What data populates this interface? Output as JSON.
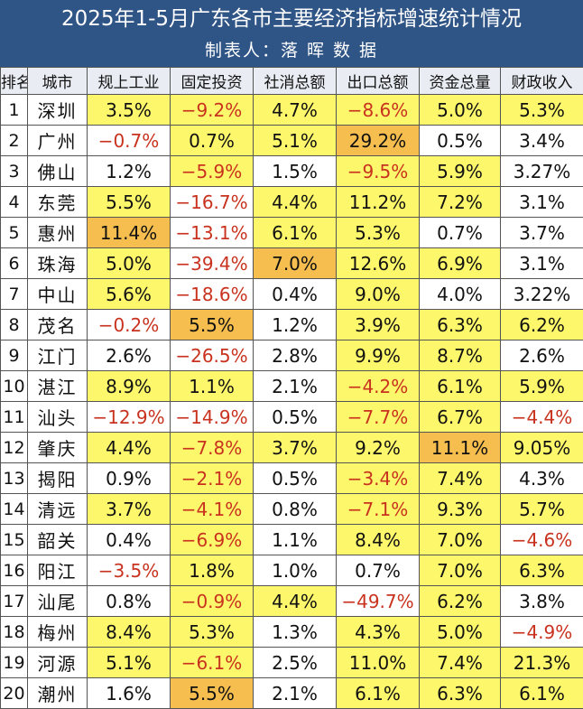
{
  "title": "2025年1-5月广东各市主要经济指标增速统计情况",
  "subtitle": "制表人：落 晖 数 据",
  "colors": {
    "header_bg": "#2f5486",
    "highlight": "#fdf76b",
    "top_value": "#f6be4f",
    "negative_text": "#c8321e"
  },
  "chart_data": {
    "type": "table",
    "columns": [
      "排名",
      "城市",
      "规上工业",
      "固定投资",
      "社消总额",
      "出口总额",
      "资金总量",
      "财政收入"
    ],
    "rows": [
      {
        "rank": "1",
        "city": "深圳",
        "cells": [
          {
            "v": "3.5%",
            "hl": true
          },
          {
            "v": "-9.2%",
            "hl": true
          },
          {
            "v": "4.7%",
            "hl": true
          },
          {
            "v": "-8.6%",
            "hl": true
          },
          {
            "v": "5.0%",
            "hl": true
          },
          {
            "v": "5.3%",
            "hl": true
          }
        ]
      },
      {
        "rank": "2",
        "city": "广州",
        "cells": [
          {
            "v": "-0.7%"
          },
          {
            "v": "0.7%",
            "hl": true
          },
          {
            "v": "5.1%",
            "hl": true
          },
          {
            "v": "29.2%",
            "top": true
          },
          {
            "v": "0.5%"
          },
          {
            "v": "3.4%"
          }
        ]
      },
      {
        "rank": "3",
        "city": "佛山",
        "cells": [
          {
            "v": "1.2%"
          },
          {
            "v": "-5.9%",
            "hl": true
          },
          {
            "v": "1.5%"
          },
          {
            "v": "-9.5%",
            "hl": true
          },
          {
            "v": "5.9%",
            "hl": true
          },
          {
            "v": "3.27%"
          }
        ]
      },
      {
        "rank": "4",
        "city": "东莞",
        "cells": [
          {
            "v": "5.5%",
            "hl": true
          },
          {
            "v": "-16.7%"
          },
          {
            "v": "4.4%",
            "hl": true
          },
          {
            "v": "11.2%",
            "hl": true
          },
          {
            "v": "7.2%",
            "hl": true
          },
          {
            "v": "3.1%"
          }
        ]
      },
      {
        "rank": "5",
        "city": "惠州",
        "cells": [
          {
            "v": "11.4%",
            "top": true
          },
          {
            "v": "-13.1%"
          },
          {
            "v": "6.1%",
            "hl": true
          },
          {
            "v": "5.3%",
            "hl": true
          },
          {
            "v": "0.7%"
          },
          {
            "v": "3.7%"
          }
        ]
      },
      {
        "rank": "6",
        "city": "珠海",
        "cells": [
          {
            "v": "5.0%",
            "hl": true
          },
          {
            "v": "-39.4%"
          },
          {
            "v": "7.0%",
            "top": true
          },
          {
            "v": "12.6%",
            "hl": true
          },
          {
            "v": "6.9%",
            "hl": true
          },
          {
            "v": "3.1%"
          }
        ]
      },
      {
        "rank": "7",
        "city": "中山",
        "cells": [
          {
            "v": "5.6%",
            "hl": true
          },
          {
            "v": "-18.6%"
          },
          {
            "v": "0.4%"
          },
          {
            "v": "9.0%",
            "hl": true
          },
          {
            "v": "4.0%"
          },
          {
            "v": "3.22%"
          }
        ]
      },
      {
        "rank": "8",
        "city": "茂名",
        "cells": [
          {
            "v": "-0.2%"
          },
          {
            "v": "5.5%",
            "top": true
          },
          {
            "v": "1.2%"
          },
          {
            "v": "3.9%",
            "hl": true
          },
          {
            "v": "6.3%",
            "hl": true
          },
          {
            "v": "6.2%",
            "hl": true
          }
        ]
      },
      {
        "rank": "9",
        "city": "江门",
        "cells": [
          {
            "v": "2.6%"
          },
          {
            "v": "-26.5%"
          },
          {
            "v": "2.8%"
          },
          {
            "v": "9.9%",
            "hl": true
          },
          {
            "v": "8.7%",
            "hl": true
          },
          {
            "v": "2.6%"
          }
        ]
      },
      {
        "rank": "10",
        "city": "湛江",
        "cells": [
          {
            "v": "8.9%",
            "hl": true
          },
          {
            "v": "1.1%",
            "hl": true
          },
          {
            "v": "2.1%"
          },
          {
            "v": "-4.2%",
            "hl": true
          },
          {
            "v": "6.1%",
            "hl": true
          },
          {
            "v": "5.9%",
            "hl": true
          }
        ]
      },
      {
        "rank": "11",
        "city": "汕头",
        "cells": [
          {
            "v": "-12.9%"
          },
          {
            "v": "-14.9%"
          },
          {
            "v": "0.5%"
          },
          {
            "v": "-7.7%",
            "hl": true
          },
          {
            "v": "6.7%",
            "hl": true
          },
          {
            "v": "-4.4%"
          }
        ]
      },
      {
        "rank": "12",
        "city": "肇庆",
        "cells": [
          {
            "v": "4.4%",
            "hl": true
          },
          {
            "v": "-7.8%",
            "hl": true
          },
          {
            "v": "3.7%",
            "hl": true
          },
          {
            "v": "9.2%",
            "hl": true
          },
          {
            "v": "11.1%",
            "top": true
          },
          {
            "v": "9.05%",
            "hl": true
          }
        ]
      },
      {
        "rank": "13",
        "city": "揭阳",
        "cells": [
          {
            "v": "0.9%"
          },
          {
            "v": "-2.1%",
            "hl": true
          },
          {
            "v": "0.5%"
          },
          {
            "v": "-3.4%",
            "hl": true
          },
          {
            "v": "7.4%",
            "hl": true
          },
          {
            "v": "4.3%"
          }
        ]
      },
      {
        "rank": "14",
        "city": "清远",
        "cells": [
          {
            "v": "3.7%",
            "hl": true
          },
          {
            "v": "-4.1%",
            "hl": true
          },
          {
            "v": "0.8%"
          },
          {
            "v": "-7.1%",
            "hl": true
          },
          {
            "v": "9.3%",
            "hl": true
          },
          {
            "v": "5.7%",
            "hl": true
          }
        ]
      },
      {
        "rank": "15",
        "city": "韶关",
        "cells": [
          {
            "v": "0.4%"
          },
          {
            "v": "-6.9%",
            "hl": true
          },
          {
            "v": "1.1%"
          },
          {
            "v": "8.4%",
            "hl": true
          },
          {
            "v": "7.0%",
            "hl": true
          },
          {
            "v": "-4.6%"
          }
        ]
      },
      {
        "rank": "16",
        "city": "阳江",
        "cells": [
          {
            "v": "-3.5%"
          },
          {
            "v": "1.8%",
            "hl": true
          },
          {
            "v": "1.0%"
          },
          {
            "v": "0.7%"
          },
          {
            "v": "7.0%",
            "hl": true
          },
          {
            "v": "6.3%",
            "hl": true
          }
        ]
      },
      {
        "rank": "17",
        "city": "汕尾",
        "cells": [
          {
            "v": "0.8%"
          },
          {
            "v": "-0.9%",
            "hl": true
          },
          {
            "v": "4.4%",
            "hl": true
          },
          {
            "v": "-49.7%"
          },
          {
            "v": "6.2%",
            "hl": true
          },
          {
            "v": "3.8%"
          }
        ]
      },
      {
        "rank": "18",
        "city": "梅州",
        "cells": [
          {
            "v": "8.4%",
            "hl": true
          },
          {
            "v": "5.3%",
            "hl": true
          },
          {
            "v": "1.3%"
          },
          {
            "v": "4.3%",
            "hl": true
          },
          {
            "v": "5.0%",
            "hl": true
          },
          {
            "v": "-4.9%"
          }
        ]
      },
      {
        "rank": "19",
        "city": "河源",
        "cells": [
          {
            "v": "5.1%",
            "hl": true
          },
          {
            "v": "-6.1%",
            "hl": true
          },
          {
            "v": "2.5%"
          },
          {
            "v": "11.0%",
            "hl": true
          },
          {
            "v": "7.4%",
            "hl": true
          },
          {
            "v": "21.3%",
            "hl": true
          }
        ]
      },
      {
        "rank": "20",
        "city": "潮州",
        "cells": [
          {
            "v": "1.6%"
          },
          {
            "v": "5.5%",
            "top": true
          },
          {
            "v": "2.1%"
          },
          {
            "v": "6.1%",
            "hl": true
          },
          {
            "v": "6.3%",
            "hl": true
          },
          {
            "v": "6.1%",
            "hl": true
          }
        ]
      }
    ]
  }
}
